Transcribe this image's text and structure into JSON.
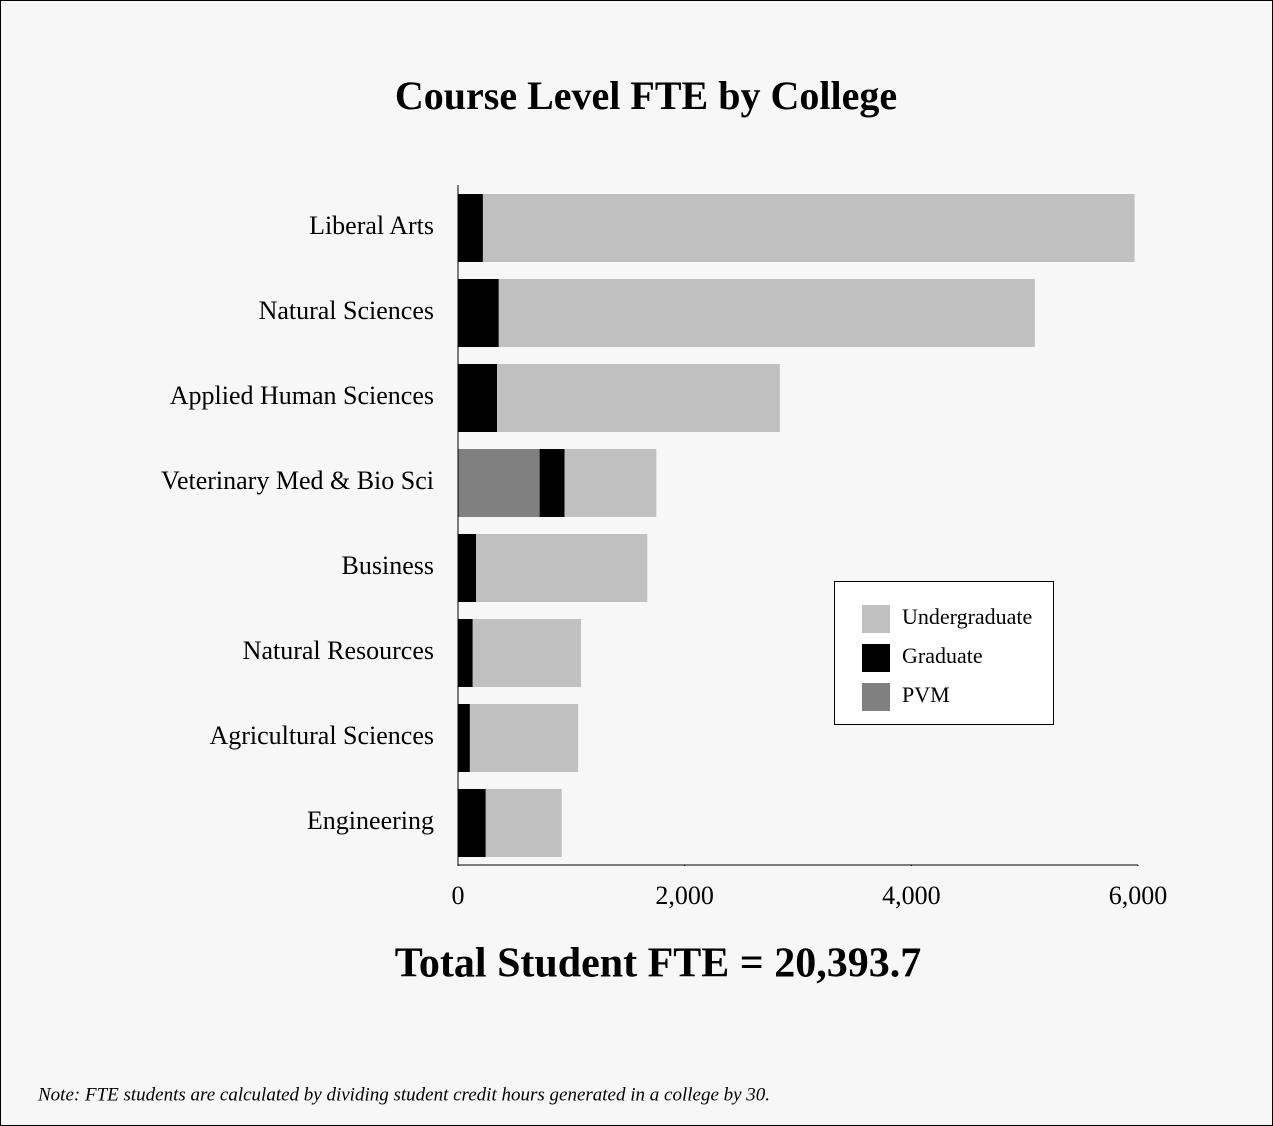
{
  "chart_data": {
    "type": "stacked_barh",
    "title": "Course Level FTE by College",
    "categories": [
      "Liberal Arts",
      "Natural Sciences",
      "Applied Human Sciences",
      "Veterinary Med & Bio Sci",
      "Business",
      "Natural Resources",
      "Agricultural Sciences",
      "Engineering"
    ],
    "series": [
      {
        "name": "Undergraduate",
        "color": "#c0c0c0",
        "values": [
          5750,
          4730,
          2495,
          810,
          1510,
          955,
          955,
          670
        ]
      },
      {
        "name": "Graduate",
        "color": "#000000",
        "values": [
          220,
          360,
          345,
          220,
          160,
          130,
          105,
          245
        ]
      },
      {
        "name": "PVM",
        "color": "#808080",
        "values": [
          null,
          null,
          null,
          720,
          null,
          null,
          null,
          null
        ]
      }
    ],
    "xlim": [
      0,
      6000
    ],
    "xticks": [
      0,
      {
        "value": 2000,
        "label": "2,000"
      },
      {
        "value": 4000,
        "label": "4,000"
      },
      {
        "value": 6000,
        "label": "6,000"
      }
    ],
    "legend": "right",
    "annotation": "Total Student FTE = 20,393.7",
    "note": "Note: FTE students are calculated by dividing student credit hours generated in a college by 30."
  }
}
